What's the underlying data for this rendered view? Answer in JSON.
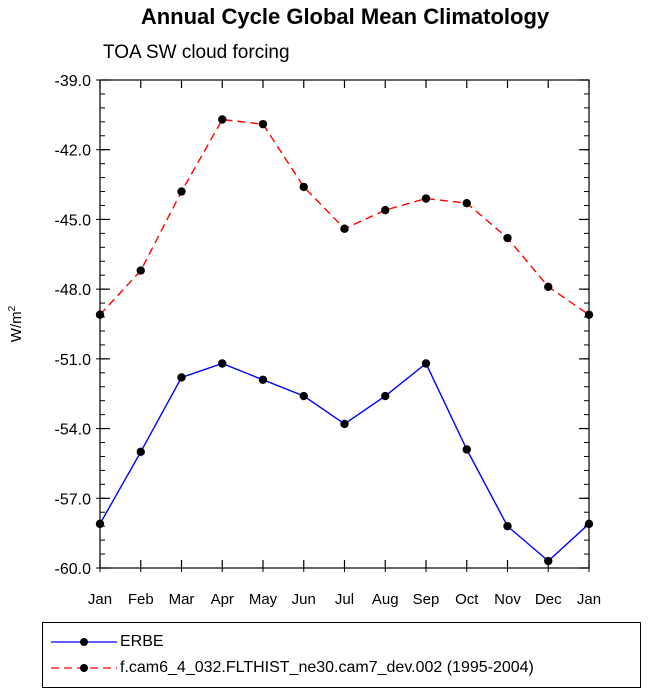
{
  "title": "Annual Cycle Global Mean Climatology",
  "subtitle": "TOA SW cloud forcing",
  "chart_data": {
    "type": "line",
    "title": "Annual Cycle Global Mean Climatology",
    "subtitle": "TOA SW cloud forcing",
    "xlabel": "",
    "ylabel": "W/m",
    "ylabel_superscript": "2",
    "categories": [
      "Jan",
      "Feb",
      "Mar",
      "Apr",
      "May",
      "Jun",
      "Jul",
      "Aug",
      "Sep",
      "Oct",
      "Nov",
      "Dec",
      "Jan"
    ],
    "ylim": [
      -60.0,
      -39.0
    ],
    "yticks": [
      "-39.0",
      "-42.0",
      "-45.0",
      "-48.0",
      "-51.0",
      "-54.0",
      "-57.0",
      "-60.0"
    ],
    "ytick_values": [
      -39,
      -42,
      -45,
      -48,
      -51,
      -54,
      -57,
      -60
    ],
    "grid": false,
    "legend_position": "bottom",
    "series": [
      {
        "name": "ERBE",
        "color": "#0000ff",
        "dash": "solid",
        "values": [
          -58.1,
          -55.0,
          -51.8,
          -51.2,
          -51.9,
          -52.6,
          -53.8,
          -52.6,
          -51.2,
          -54.9,
          -58.2,
          -59.7,
          -58.1
        ]
      },
      {
        "name": "f.cam6_4_032.FLTHIST_ne30.cam7_dev.002 (1995-2004)",
        "color": "#ff0000",
        "dash": "dashed",
        "values": [
          -49.1,
          -47.2,
          -43.8,
          -40.7,
          -40.9,
          -43.6,
          -45.4,
          -44.6,
          -44.1,
          -44.3,
          -45.8,
          -47.9,
          -49.1
        ]
      }
    ]
  }
}
